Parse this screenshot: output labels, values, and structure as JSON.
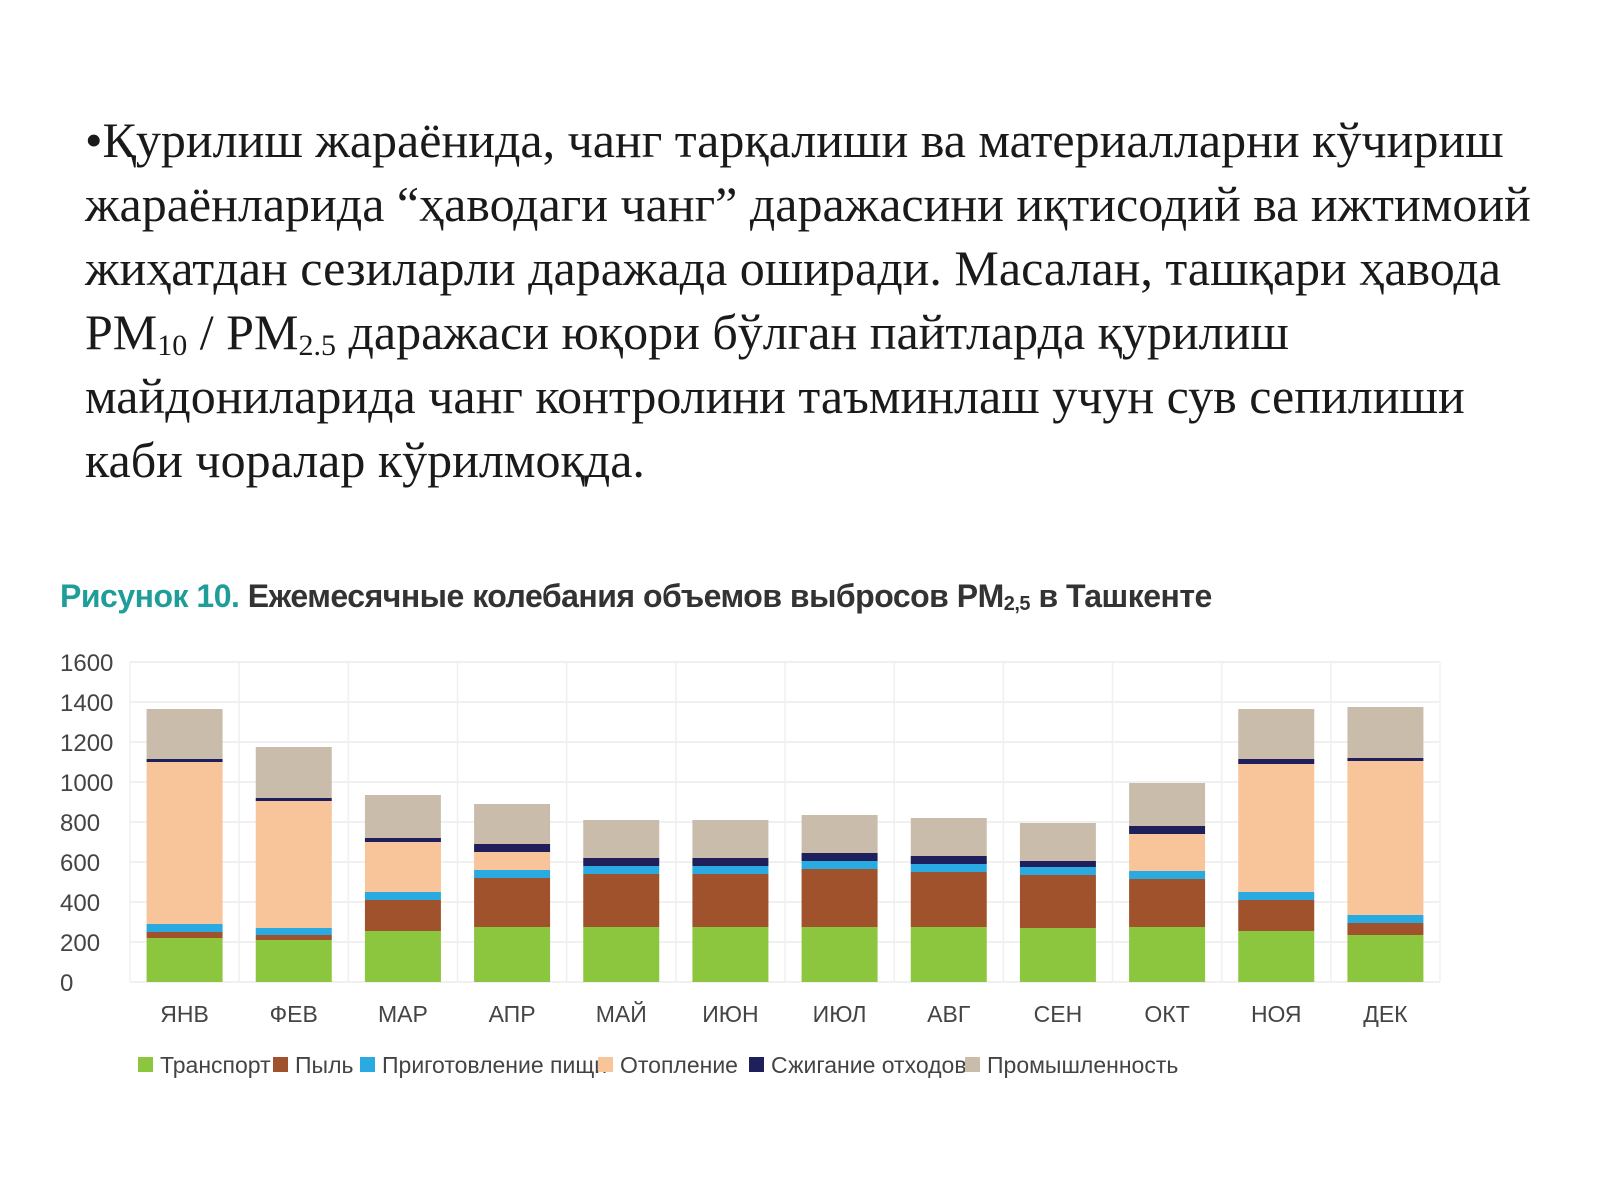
{
  "paragraph": {
    "part1": "•Қурилиш жараёнида, чанг тарқалиши ва материалларни кўчириш жараёнларида “ҳаводаги чанг” даражасини иқтисодий ва ижтимоий жиҳатдан сезиларли даражада оширади. Масалан, ташқари ҳавода PM",
    "sub1": "10",
    "part2": " / PM",
    "sub2": "2.5",
    "part3": " даражаси юқори бўлган пайтларда қурилиш майдониларида чанг контролини таъминлаш учун сув сепилиши каби чоралар кўрилмоқда."
  },
  "figure": {
    "label": "Рисунок 10.",
    "title_main": " Ежемесячные колебания объемов выбросов PM",
    "title_sub": "2,5",
    "title_end": " в Ташкенте"
  },
  "chart_data": {
    "type": "bar",
    "stacked": true,
    "categories": [
      "ЯНВ",
      "ФЕВ",
      "МАР",
      "АПР",
      "МАЙ",
      "ИЮН",
      "ИЮЛ",
      "АВГ",
      "СЕН",
      "ОКТ",
      "НОЯ",
      "ДЕК"
    ],
    "series": [
      {
        "name": "Транспорт",
        "color": "#8cc63f",
        "values": [
          220,
          210,
          255,
          275,
          275,
          275,
          275,
          275,
          270,
          275,
          255,
          235
        ]
      },
      {
        "name": "Пыль",
        "color": "#a0522d",
        "values": [
          30,
          25,
          155,
          245,
          265,
          265,
          290,
          275,
          265,
          240,
          155,
          60
        ]
      },
      {
        "name": "Приготовление пищи",
        "color": "#29abe2",
        "values": [
          40,
          35,
          40,
          40,
          40,
          40,
          40,
          40,
          40,
          40,
          40,
          40
        ]
      },
      {
        "name": "Отопление",
        "color": "#f8c49a",
        "values": [
          810,
          635,
          250,
          90,
          0,
          0,
          0,
          0,
          0,
          185,
          640,
          770
        ]
      },
      {
        "name": "Сжигание отходов",
        "color": "#1f1f5c",
        "values": [
          15,
          15,
          20,
          40,
          40,
          40,
          40,
          40,
          30,
          40,
          25,
          15
        ]
      },
      {
        "name": "Промышленность",
        "color": "#c9bcaa",
        "values": [
          250,
          255,
          215,
          200,
          190,
          190,
          190,
          190,
          190,
          215,
          250,
          255
        ]
      }
    ],
    "ylim": [
      0,
      1600
    ],
    "yticks": [
      "1600",
      "1400",
      "1200",
      "1000",
      "800",
      "600",
      "400",
      "200",
      "0"
    ],
    "grid": true,
    "legend": "bottom"
  }
}
